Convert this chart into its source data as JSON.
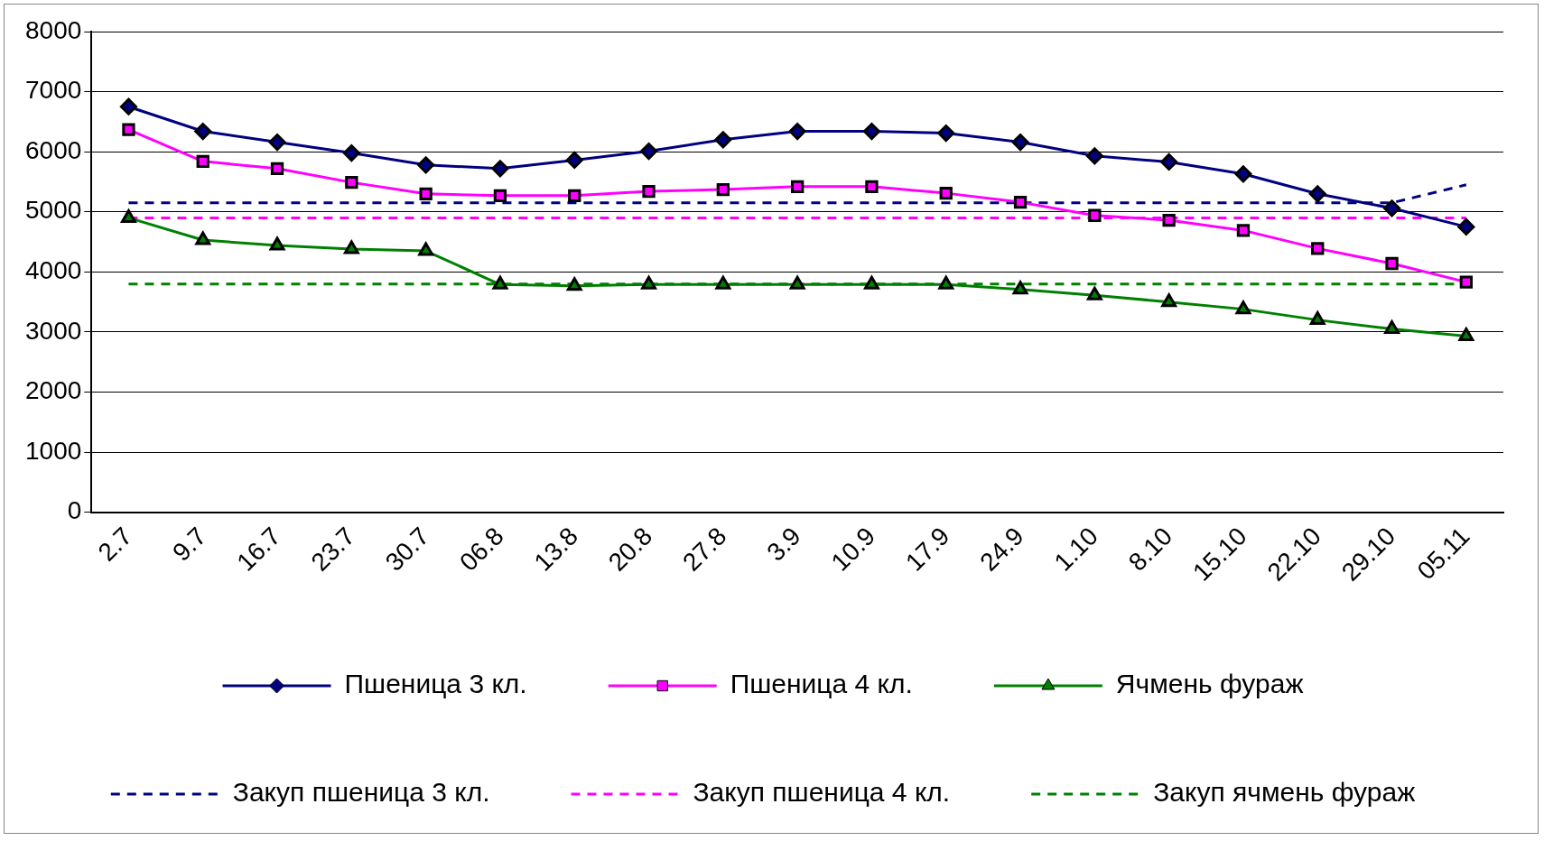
{
  "chart_data": {
    "type": "line",
    "categories": [
      "2.7",
      "9.7",
      "16.7",
      "23.7",
      "30.7",
      "06.8",
      "13.8",
      "20.8",
      "27.8",
      "3.9",
      "10.9",
      "17.9",
      "24.9",
      "1.10",
      "8.10",
      "15.10",
      "22.10",
      "29.10",
      "05.11"
    ],
    "ylim": [
      0,
      8000
    ],
    "yticks": [
      0,
      1000,
      2000,
      3000,
      4000,
      5000,
      6000,
      7000,
      8000
    ],
    "grid": "y",
    "legend": "bottom",
    "series": [
      {
        "name": "Пшеница 3 кл.",
        "color": "#000080",
        "marker": "diamond",
        "line_style": "solid",
        "values": [
          6750,
          6340,
          6160,
          5980,
          5780,
          5720,
          5860,
          6010,
          6200,
          6340,
          6340,
          6310,
          6160,
          5930,
          5830,
          5630,
          5300,
          5060,
          4750
        ]
      },
      {
        "name": "Пшеница 4 кл.",
        "color": "#ff00ff",
        "marker": "square",
        "line_style": "solid",
        "values": [
          6370,
          5840,
          5720,
          5490,
          5300,
          5270,
          5270,
          5340,
          5370,
          5420,
          5420,
          5310,
          5160,
          4940,
          4860,
          4690,
          4390,
          4140,
          3830
        ]
      },
      {
        "name": "Ячмень фураж",
        "color": "#008000",
        "marker": "triangle",
        "line_style": "solid",
        "values": [
          4900,
          4530,
          4440,
          4380,
          4350,
          3790,
          3770,
          3790,
          3790,
          3790,
          3790,
          3790,
          3710,
          3610,
          3500,
          3380,
          3200,
          3050,
          2930
        ]
      },
      {
        "name": "Закуп пшеница 3 кл.",
        "color": "#000080",
        "marker": "none",
        "line_style": "dashed",
        "values": [
          5150,
          5150,
          5150,
          5150,
          5150,
          5150,
          5150,
          5150,
          5150,
          5150,
          5150,
          5150,
          5150,
          5150,
          5150,
          5150,
          5150,
          5150,
          5450
        ]
      },
      {
        "name": "Закуп пшеница 4 кл.",
        "color": "#ff00ff",
        "marker": "none",
        "line_style": "dashed",
        "values": [
          4900,
          4900,
          4900,
          4900,
          4900,
          4900,
          4900,
          4900,
          4900,
          4900,
          4900,
          4900,
          4900,
          4900,
          4900,
          4900,
          4900,
          4900,
          4900
        ]
      },
      {
        "name": "Закуп ячмень фураж",
        "color": "#008000",
        "marker": "none",
        "line_style": "dashed",
        "values": [
          3800,
          3800,
          3800,
          3800,
          3800,
          3800,
          3800,
          3800,
          3800,
          3800,
          3800,
          3800,
          3800,
          3800,
          3800,
          3800,
          3800,
          3800,
          3800
        ]
      }
    ]
  }
}
